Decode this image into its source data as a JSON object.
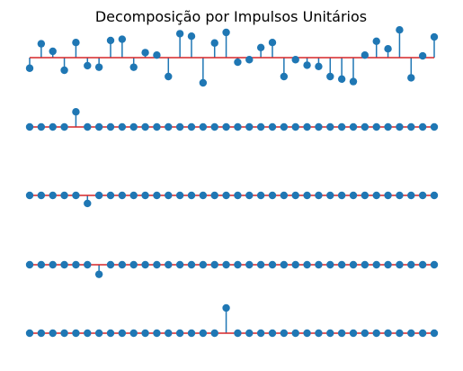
{
  "chart_data": [
    {
      "type": "stem",
      "title": "Decomposição por Impulsos Unitários",
      "axis_visible": false,
      "x": [
        0,
        1,
        2,
        3,
        4,
        5,
        6,
        7,
        8,
        9,
        10,
        11,
        12,
        13,
        14,
        15,
        16,
        17,
        18,
        19,
        20,
        21,
        22,
        23,
        24,
        25,
        26,
        27,
        28,
        29,
        30,
        31,
        32,
        33,
        34,
        35
      ],
      "values": [
        -0.42,
        0.55,
        0.25,
        -0.5,
        0.6,
        -0.32,
        -0.38,
        0.68,
        0.73,
        -0.38,
        0.2,
        0.1,
        -0.75,
        0.95,
        0.85,
        -1.0,
        0.58,
        1.0,
        -0.18,
        -0.08,
        0.4,
        0.6,
        -0.75,
        -0.08,
        -0.3,
        -0.35,
        -0.75,
        -0.85,
        -0.95,
        0.1,
        0.65,
        0.35,
        1.1,
        -0.8,
        0.07,
        0.82
      ],
      "ylim": [
        -1.0,
        1.05
      ],
      "marker_color": "#1f77b4",
      "baseline_color": "#d62728"
    },
    {
      "type": "stem",
      "axis_visible": false,
      "x": [
        0,
        1,
        2,
        3,
        4,
        5,
        6,
        7,
        8,
        9,
        10,
        11,
        12,
        13,
        14,
        15,
        16,
        17,
        18,
        19,
        20,
        21,
        22,
        23,
        24,
        25,
        26,
        27,
        28,
        29,
        30,
        31,
        32,
        33,
        34,
        35
      ],
      "values": [
        0,
        0,
        0,
        0,
        0.6,
        0,
        0,
        0,
        0,
        0,
        0,
        0,
        0,
        0,
        0,
        0,
        0,
        0,
        0,
        0,
        0,
        0,
        0,
        0,
        0,
        0,
        0,
        0,
        0,
        0,
        0,
        0,
        0,
        0,
        0,
        0
      ],
      "ylim": [
        -1,
        1
      ],
      "marker_color": "#1f77b4",
      "baseline_color": "#d62728"
    },
    {
      "type": "stem",
      "axis_visible": false,
      "x": [
        0,
        1,
        2,
        3,
        4,
        5,
        6,
        7,
        8,
        9,
        10,
        11,
        12,
        13,
        14,
        15,
        16,
        17,
        18,
        19,
        20,
        21,
        22,
        23,
        24,
        25,
        26,
        27,
        28,
        29,
        30,
        31,
        32,
        33,
        34,
        35
      ],
      "values": [
        0,
        0,
        0,
        0,
        0,
        -0.32,
        0,
        0,
        0,
        0,
        0,
        0,
        0,
        0,
        0,
        0,
        0,
        0,
        0,
        0,
        0,
        0,
        0,
        0,
        0,
        0,
        0,
        0,
        0,
        0,
        0,
        0,
        0,
        0,
        0,
        0
      ],
      "ylim": [
        -1,
        1
      ],
      "marker_color": "#1f77b4",
      "baseline_color": "#d62728"
    },
    {
      "type": "stem",
      "axis_visible": false,
      "x": [
        0,
        1,
        2,
        3,
        4,
        5,
        6,
        7,
        8,
        9,
        10,
        11,
        12,
        13,
        14,
        15,
        16,
        17,
        18,
        19,
        20,
        21,
        22,
        23,
        24,
        25,
        26,
        27,
        28,
        29,
        30,
        31,
        32,
        33,
        34,
        35
      ],
      "values": [
        0,
        0,
        0,
        0,
        0,
        0,
        -0.38,
        0,
        0,
        0,
        0,
        0,
        0,
        0,
        0,
        0,
        0,
        0,
        0,
        0,
        0,
        0,
        0,
        0,
        0,
        0,
        0,
        0,
        0,
        0,
        0,
        0,
        0,
        0,
        0,
        0
      ],
      "ylim": [
        -1,
        1
      ],
      "marker_color": "#1f77b4",
      "baseline_color": "#d62728"
    },
    {
      "type": "stem",
      "axis_visible": false,
      "x": [
        0,
        1,
        2,
        3,
        4,
        5,
        6,
        7,
        8,
        9,
        10,
        11,
        12,
        13,
        14,
        15,
        16,
        17,
        18,
        19,
        20,
        21,
        22,
        23,
        24,
        25,
        26,
        27,
        28,
        29,
        30,
        31,
        32,
        33,
        34,
        35
      ],
      "values": [
        0,
        0,
        0,
        0,
        0,
        0,
        0,
        0,
        0,
        0,
        0,
        0,
        0,
        0,
        0,
        0,
        0,
        1.0,
        0,
        0,
        0,
        0,
        0,
        0,
        0,
        0,
        0,
        0,
        0,
        0,
        0,
        0,
        0,
        0,
        0,
        0
      ],
      "ylim": [
        -1,
        1
      ],
      "marker_color": "#1f77b4",
      "baseline_color": "#d62728"
    }
  ]
}
